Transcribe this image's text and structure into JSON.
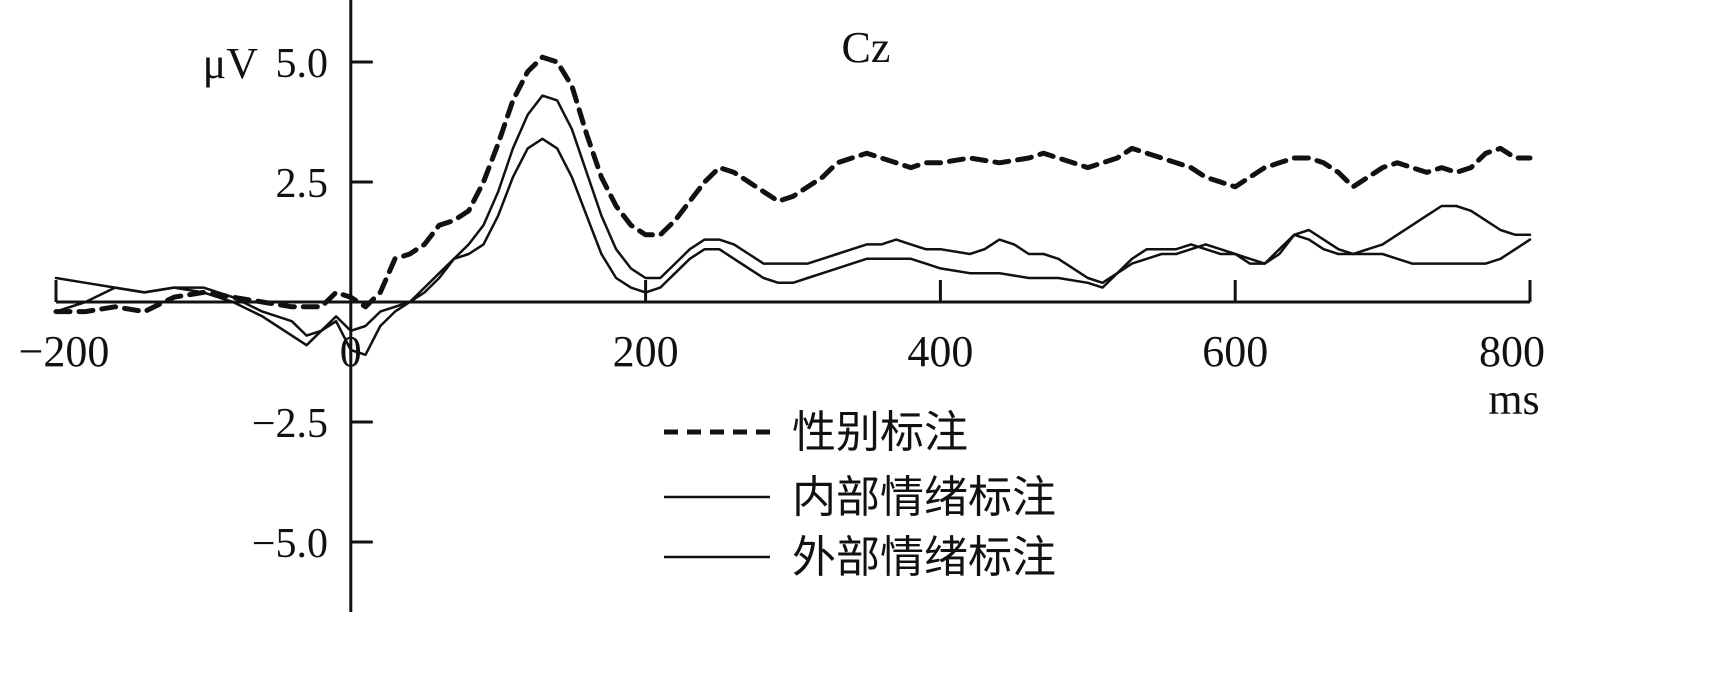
{
  "chart_data": {
    "type": "line",
    "title": "Cz",
    "ylabel": "μV",
    "xlabel": "ms",
    "xlim": [
      -200,
      800
    ],
    "ylim": [
      -6.2,
      6.2
    ],
    "x_ticks": [
      -200,
      0,
      200,
      400,
      600,
      800
    ],
    "x_tick_labels": [
      "−200",
      "0",
      "200",
      "400",
      "600",
      "800"
    ],
    "y_ticks": [
      5.0,
      2.5,
      -2.5,
      -5.0
    ],
    "y_tick_labels": [
      "5.0",
      "2.5",
      "−2.5",
      "−5.0"
    ],
    "grid": false,
    "legend_position": "bottom-center",
    "series": [
      {
        "name": "性别标注",
        "style": "dashed",
        "points": [
          [
            -200,
            -0.2
          ],
          [
            -180,
            -0.2
          ],
          [
            -160,
            -0.1
          ],
          [
            -140,
            -0.2
          ],
          [
            -120,
            0.1
          ],
          [
            -100,
            0.2
          ],
          [
            -80,
            0.1
          ],
          [
            -60,
            0.0
          ],
          [
            -40,
            -0.1
          ],
          [
            -20,
            -0.1
          ],
          [
            -10,
            0.2
          ],
          [
            0,
            0.1
          ],
          [
            10,
            -0.1
          ],
          [
            20,
            0.2
          ],
          [
            30,
            0.9
          ],
          [
            40,
            1.0
          ],
          [
            50,
            1.2
          ],
          [
            60,
            1.6
          ],
          [
            70,
            1.7
          ],
          [
            80,
            1.9
          ],
          [
            90,
            2.5
          ],
          [
            100,
            3.3
          ],
          [
            110,
            4.2
          ],
          [
            120,
            4.8
          ],
          [
            130,
            5.1
          ],
          [
            140,
            5.0
          ],
          [
            150,
            4.5
          ],
          [
            160,
            3.5
          ],
          [
            170,
            2.6
          ],
          [
            180,
            2.0
          ],
          [
            190,
            1.6
          ],
          [
            200,
            1.4
          ],
          [
            210,
            1.4
          ],
          [
            220,
            1.7
          ],
          [
            230,
            2.1
          ],
          [
            240,
            2.5
          ],
          [
            250,
            2.8
          ],
          [
            260,
            2.7
          ],
          [
            270,
            2.5
          ],
          [
            280,
            2.3
          ],
          [
            290,
            2.1
          ],
          [
            300,
            2.2
          ],
          [
            310,
            2.4
          ],
          [
            320,
            2.6
          ],
          [
            330,
            2.9
          ],
          [
            340,
            3.0
          ],
          [
            350,
            3.1
          ],
          [
            360,
            3.0
          ],
          [
            370,
            2.9
          ],
          [
            380,
            2.8
          ],
          [
            390,
            2.9
          ],
          [
            400,
            2.9
          ],
          [
            420,
            3.0
          ],
          [
            440,
            2.9
          ],
          [
            460,
            3.0
          ],
          [
            470,
            3.1
          ],
          [
            480,
            3.0
          ],
          [
            490,
            2.9
          ],
          [
            500,
            2.8
          ],
          [
            510,
            2.9
          ],
          [
            520,
            3.0
          ],
          [
            530,
            3.2
          ],
          [
            540,
            3.1
          ],
          [
            550,
            3.0
          ],
          [
            560,
            2.9
          ],
          [
            570,
            2.8
          ],
          [
            580,
            2.6
          ],
          [
            590,
            2.5
          ],
          [
            600,
            2.4
          ],
          [
            610,
            2.6
          ],
          [
            620,
            2.8
          ],
          [
            630,
            2.9
          ],
          [
            640,
            3.0
          ],
          [
            650,
            3.0
          ],
          [
            660,
            2.9
          ],
          [
            670,
            2.7
          ],
          [
            680,
            2.4
          ],
          [
            690,
            2.6
          ],
          [
            700,
            2.8
          ],
          [
            710,
            2.9
          ],
          [
            720,
            2.8
          ],
          [
            730,
            2.7
          ],
          [
            740,
            2.8
          ],
          [
            750,
            2.7
          ],
          [
            760,
            2.8
          ],
          [
            770,
            3.1
          ],
          [
            780,
            3.2
          ],
          [
            790,
            3.0
          ],
          [
            800,
            3.0
          ]
        ]
      },
      {
        "name": "内部情绪标注",
        "style": "solid",
        "points": [
          [
            -200,
            -0.2
          ],
          [
            -180,
            0.0
          ],
          [
            -160,
            0.3
          ],
          [
            -140,
            0.2
          ],
          [
            -120,
            0.3
          ],
          [
            -100,
            0.3
          ],
          [
            -80,
            0.1
          ],
          [
            -60,
            -0.2
          ],
          [
            -40,
            -0.4
          ],
          [
            -30,
            -0.7
          ],
          [
            -20,
            -0.6
          ],
          [
            -10,
            -0.4
          ],
          [
            0,
            -1.0
          ],
          [
            10,
            -1.1
          ],
          [
            20,
            -0.5
          ],
          [
            30,
            -0.2
          ],
          [
            40,
            0.0
          ],
          [
            50,
            0.3
          ],
          [
            60,
            0.6
          ],
          [
            70,
            0.9
          ],
          [
            80,
            1.2
          ],
          [
            90,
            1.6
          ],
          [
            100,
            2.3
          ],
          [
            110,
            3.2
          ],
          [
            120,
            3.9
          ],
          [
            130,
            4.3
          ],
          [
            140,
            4.2
          ],
          [
            150,
            3.6
          ],
          [
            160,
            2.7
          ],
          [
            170,
            1.8
          ],
          [
            180,
            1.1
          ],
          [
            190,
            0.7
          ],
          [
            200,
            0.5
          ],
          [
            210,
            0.5
          ],
          [
            220,
            0.8
          ],
          [
            230,
            1.1
          ],
          [
            240,
            1.3
          ],
          [
            250,
            1.3
          ],
          [
            260,
            1.2
          ],
          [
            270,
            1.0
          ],
          [
            280,
            0.8
          ],
          [
            290,
            0.8
          ],
          [
            300,
            0.8
          ],
          [
            310,
            0.8
          ],
          [
            320,
            0.9
          ],
          [
            330,
            1.0
          ],
          [
            340,
            1.1
          ],
          [
            350,
            1.2
          ],
          [
            360,
            1.2
          ],
          [
            370,
            1.3
          ],
          [
            380,
            1.2
          ],
          [
            390,
            1.1
          ],
          [
            400,
            1.1
          ],
          [
            420,
            1.0
          ],
          [
            430,
            1.1
          ],
          [
            440,
            1.3
          ],
          [
            450,
            1.2
          ],
          [
            460,
            1.0
          ],
          [
            470,
            1.0
          ],
          [
            480,
            0.9
          ],
          [
            490,
            0.7
          ],
          [
            500,
            0.5
          ],
          [
            510,
            0.4
          ],
          [
            520,
            0.6
          ],
          [
            530,
            0.9
          ],
          [
            540,
            1.1
          ],
          [
            550,
            1.1
          ],
          [
            560,
            1.1
          ],
          [
            570,
            1.2
          ],
          [
            580,
            1.1
          ],
          [
            590,
            1.0
          ],
          [
            600,
            1.0
          ],
          [
            610,
            0.8
          ],
          [
            620,
            0.8
          ],
          [
            630,
            1.0
          ],
          [
            640,
            1.4
          ],
          [
            650,
            1.5
          ],
          [
            660,
            1.3
          ],
          [
            670,
            1.1
          ],
          [
            680,
            1.0
          ],
          [
            690,
            1.1
          ],
          [
            700,
            1.2
          ],
          [
            710,
            1.4
          ],
          [
            720,
            1.6
          ],
          [
            730,
            1.8
          ],
          [
            740,
            2.0
          ],
          [
            750,
            2.0
          ],
          [
            760,
            1.9
          ],
          [
            770,
            1.7
          ],
          [
            780,
            1.5
          ],
          [
            790,
            1.4
          ],
          [
            800,
            1.4
          ]
        ]
      },
      {
        "name": "外部情绪标注",
        "style": "solid",
        "points": [
          [
            -200,
            0.5
          ],
          [
            -180,
            0.4
          ],
          [
            -160,
            0.3
          ],
          [
            -140,
            0.2
          ],
          [
            -120,
            0.3
          ],
          [
            -100,
            0.2
          ],
          [
            -80,
            0.0
          ],
          [
            -60,
            -0.3
          ],
          [
            -40,
            -0.7
          ],
          [
            -30,
            -0.9
          ],
          [
            -20,
            -0.6
          ],
          [
            -10,
            -0.3
          ],
          [
            0,
            -0.6
          ],
          [
            10,
            -0.5
          ],
          [
            20,
            -0.2
          ],
          [
            30,
            -0.1
          ],
          [
            40,
            0.0
          ],
          [
            50,
            0.2
          ],
          [
            60,
            0.5
          ],
          [
            70,
            0.9
          ],
          [
            80,
            1.0
          ],
          [
            90,
            1.2
          ],
          [
            100,
            1.8
          ],
          [
            110,
            2.6
          ],
          [
            120,
            3.2
          ],
          [
            130,
            3.4
          ],
          [
            140,
            3.2
          ],
          [
            150,
            2.6
          ],
          [
            160,
            1.8
          ],
          [
            170,
            1.0
          ],
          [
            180,
            0.5
          ],
          [
            190,
            0.3
          ],
          [
            200,
            0.2
          ],
          [
            210,
            0.3
          ],
          [
            220,
            0.6
          ],
          [
            230,
            0.9
          ],
          [
            240,
            1.1
          ],
          [
            250,
            1.1
          ],
          [
            260,
            0.9
          ],
          [
            270,
            0.7
          ],
          [
            280,
            0.5
          ],
          [
            290,
            0.4
          ],
          [
            300,
            0.4
          ],
          [
            310,
            0.5
          ],
          [
            320,
            0.6
          ],
          [
            330,
            0.7
          ],
          [
            340,
            0.8
          ],
          [
            350,
            0.9
          ],
          [
            360,
            0.9
          ],
          [
            370,
            0.9
          ],
          [
            380,
            0.9
          ],
          [
            390,
            0.8
          ],
          [
            400,
            0.7
          ],
          [
            420,
            0.6
          ],
          [
            440,
            0.6
          ],
          [
            460,
            0.5
          ],
          [
            480,
            0.5
          ],
          [
            500,
            0.4
          ],
          [
            510,
            0.3
          ],
          [
            520,
            0.6
          ],
          [
            530,
            0.8
          ],
          [
            540,
            0.9
          ],
          [
            550,
            1.0
          ],
          [
            560,
            1.0
          ],
          [
            570,
            1.1
          ],
          [
            580,
            1.2
          ],
          [
            590,
            1.1
          ],
          [
            600,
            1.0
          ],
          [
            610,
            0.9
          ],
          [
            620,
            0.8
          ],
          [
            630,
            1.1
          ],
          [
            640,
            1.4
          ],
          [
            650,
            1.3
          ],
          [
            660,
            1.1
          ],
          [
            670,
            1.0
          ],
          [
            680,
            1.0
          ],
          [
            690,
            1.0
          ],
          [
            700,
            1.0
          ],
          [
            710,
            0.9
          ],
          [
            720,
            0.8
          ],
          [
            730,
            0.8
          ],
          [
            740,
            0.8
          ],
          [
            750,
            0.8
          ],
          [
            760,
            0.8
          ],
          [
            770,
            0.8
          ],
          [
            780,
            0.9
          ],
          [
            790,
            1.1
          ],
          [
            800,
            1.3
          ]
        ]
      }
    ]
  }
}
